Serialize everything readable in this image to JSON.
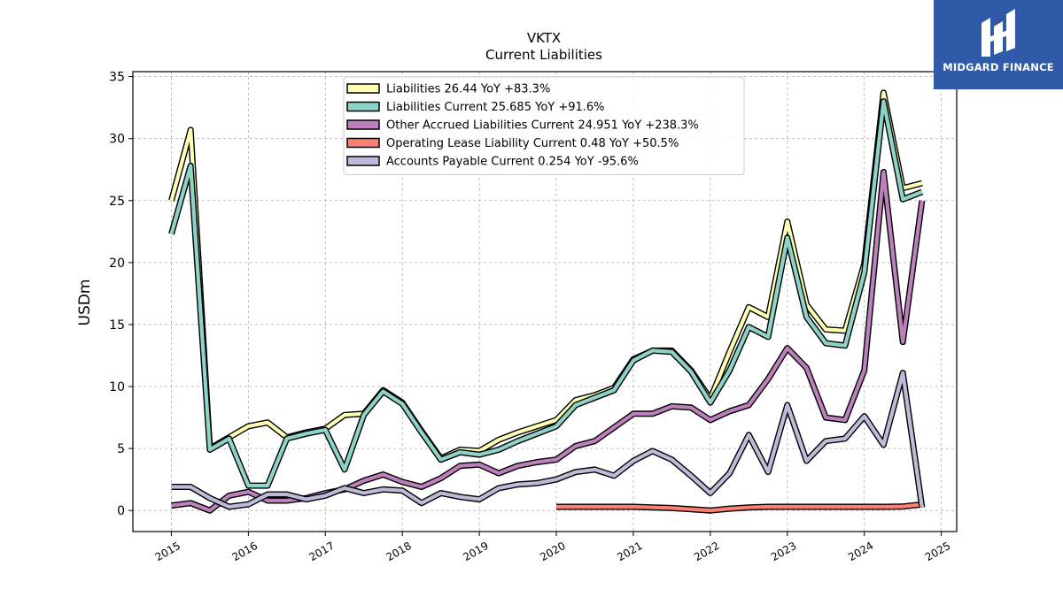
{
  "logo": {
    "text": "MIDGARD FINANCE",
    "color": "#2e5aa8"
  },
  "chart_data": {
    "type": "line",
    "title": "VKTX",
    "subtitle": "Current  Liabilities",
    "ylabel": "USDm",
    "xlabel": "",
    "ylim": [
      -1.7,
      35.4
    ],
    "xlim": [
      2014.5,
      2025.2
    ],
    "yticks": [
      0,
      5,
      10,
      15,
      20,
      25,
      30,
      35
    ],
    "xticks": [
      "2015",
      "2016",
      "2017",
      "2018",
      "2019",
      "2020",
      "2021",
      "2022",
      "2023",
      "2024",
      "2025"
    ],
    "grid": true,
    "legend_position": "top-center",
    "series": [
      {
        "name": "Liabilities  26.44 YoY +83.3%",
        "color": "#ffffb3",
        "x": [
          2015.0,
          2015.25,
          2015.5,
          2015.75,
          2016.0,
          2016.25,
          2016.5,
          2016.75,
          2017.0,
          2017.25,
          2017.5,
          2017.75,
          2018.0,
          2018.25,
          2018.5,
          2018.75,
          2019.0,
          2019.25,
          2019.5,
          2019.75,
          2020.0,
          2020.25,
          2020.5,
          2020.75,
          2021.0,
          2021.25,
          2021.5,
          2021.75,
          2022.0,
          2022.25,
          2022.5,
          2022.75,
          2023.0,
          2023.25,
          2023.5,
          2023.75,
          2024.0,
          2024.25,
          2024.5,
          2024.75
        ],
        "values": [
          25.0,
          30.7,
          5.0,
          5.9,
          6.8,
          7.1,
          5.9,
          6.3,
          6.6,
          7.7,
          7.8,
          9.7,
          8.7,
          6.4,
          4.2,
          4.9,
          4.8,
          5.7,
          6.3,
          6.8,
          7.3,
          8.9,
          9.3,
          9.9,
          12.2,
          12.9,
          12.9,
          11.3,
          9.0,
          12.8,
          16.4,
          15.6,
          23.3,
          16.6,
          14.6,
          14.5,
          19.9,
          33.7,
          26.0,
          26.4
        ]
      },
      {
        "name": "Liabilities Current  25.685 YoY +91.6%",
        "color": "#8dd3c7",
        "x": [
          2015.0,
          2015.25,
          2015.5,
          2015.75,
          2016.0,
          2016.25,
          2016.5,
          2016.75,
          2017.0,
          2017.25,
          2017.5,
          2017.75,
          2018.0,
          2018.25,
          2018.5,
          2018.75,
          2019.0,
          2019.25,
          2019.5,
          2019.75,
          2020.0,
          2020.25,
          2020.5,
          2020.75,
          2021.0,
          2021.25,
          2021.5,
          2021.75,
          2022.0,
          2022.25,
          2022.5,
          2022.75,
          2023.0,
          2023.25,
          2023.5,
          2023.75,
          2024.0,
          2024.25,
          2024.5,
          2024.75
        ],
        "values": [
          22.3,
          27.8,
          4.9,
          5.8,
          2.0,
          2.0,
          5.8,
          6.2,
          6.5,
          3.3,
          7.7,
          9.6,
          8.6,
          6.3,
          4.1,
          4.7,
          4.5,
          4.9,
          5.6,
          6.2,
          6.8,
          8.5,
          9.1,
          9.7,
          12.1,
          12.9,
          12.8,
          11.2,
          8.7,
          11.3,
          14.8,
          14.0,
          22.0,
          15.6,
          13.5,
          13.3,
          19.2,
          33.0,
          25.1,
          25.7
        ]
      },
      {
        "name": "Other Accrued Liabilities Current  24.951 YoY +238.3%",
        "color": "#bc80bd",
        "x": [
          2015.0,
          2015.25,
          2015.5,
          2015.75,
          2016.0,
          2016.25,
          2016.5,
          2016.75,
          2017.0,
          2017.25,
          2017.5,
          2017.75,
          2018.0,
          2018.25,
          2018.5,
          2018.75,
          2019.0,
          2019.25,
          2019.5,
          2019.75,
          2020.0,
          2020.25,
          2020.5,
          2020.75,
          2021.0,
          2021.25,
          2021.5,
          2021.75,
          2022.0,
          2022.25,
          2022.5,
          2022.75,
          2023.0,
          2023.25,
          2023.5,
          2023.75,
          2024.0,
          2024.25,
          2024.5,
          2024.75
        ],
        "values": [
          0.4,
          0.6,
          0.0,
          1.2,
          1.5,
          0.8,
          0.8,
          1.0,
          1.4,
          1.7,
          2.4,
          2.9,
          2.3,
          1.9,
          2.6,
          3.6,
          3.7,
          3.0,
          3.6,
          3.9,
          4.1,
          5.2,
          5.6,
          6.7,
          7.8,
          7.8,
          8.4,
          8.3,
          7.3,
          8.0,
          8.5,
          10.6,
          13.1,
          11.5,
          7.5,
          7.3,
          11.3,
          27.3,
          13.6,
          25.0
        ]
      },
      {
        "name": "Operating Lease Liability Current  0.48 YoY +50.5%",
        "color": "#fb8072",
        "x": [
          2020.0,
          2020.25,
          2020.5,
          2020.75,
          2021.0,
          2021.25,
          2021.5,
          2021.75,
          2022.0,
          2022.25,
          2022.5,
          2022.75,
          2023.0,
          2023.25,
          2023.5,
          2023.75,
          2024.0,
          2024.25,
          2024.5,
          2024.75
        ],
        "values": [
          0.3,
          0.3,
          0.3,
          0.3,
          0.3,
          0.25,
          0.2,
          0.1,
          0.0,
          0.15,
          0.25,
          0.3,
          0.3,
          0.3,
          0.3,
          0.3,
          0.3,
          0.3,
          0.32,
          0.48
        ]
      },
      {
        "name": "Accounts Payable Current  0.254 YoY -95.6%",
        "color": "#bebada",
        "x": [
          2015.0,
          2015.25,
          2015.5,
          2015.75,
          2016.0,
          2016.25,
          2016.5,
          2016.75,
          2017.0,
          2017.25,
          2017.5,
          2017.75,
          2018.0,
          2018.25,
          2018.5,
          2018.75,
          2019.0,
          2019.25,
          2019.5,
          2019.75,
          2020.0,
          2020.25,
          2020.5,
          2020.75,
          2021.0,
          2021.25,
          2021.5,
          2021.75,
          2022.0,
          2022.25,
          2022.5,
          2022.75,
          2023.0,
          2023.25,
          2023.5,
          2023.75,
          2024.0,
          2024.25,
          2024.5,
          2024.75
        ],
        "values": [
          1.9,
          1.9,
          1.0,
          0.3,
          0.5,
          1.3,
          1.3,
          0.9,
          1.2,
          1.8,
          1.4,
          1.7,
          1.6,
          0.6,
          1.4,
          1.1,
          0.9,
          1.8,
          2.1,
          2.2,
          2.5,
          3.1,
          3.3,
          2.8,
          4.0,
          4.8,
          4.1,
          2.8,
          1.4,
          3.0,
          6.1,
          3.1,
          8.5,
          4.0,
          5.6,
          5.8,
          7.6,
          5.3,
          11.1,
          0.25
        ]
      }
    ]
  }
}
